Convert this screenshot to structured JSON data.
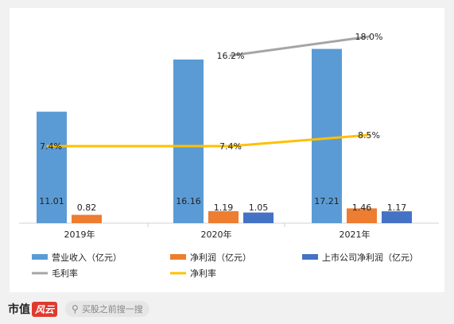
{
  "chart_data": {
    "type": "bar",
    "title": "",
    "categories": [
      "2019年",
      "2020年",
      "2021年"
    ],
    "series": [
      {
        "name": "营业收入（亿元）",
        "kind": "bar",
        "color": "#5b9bd5",
        "values": [
          11.01,
          16.16,
          17.21
        ],
        "labels": [
          "11.01",
          "16.16",
          "17.21"
        ]
      },
      {
        "name": "净利润（亿元）",
        "kind": "bar",
        "color": "#ed7d31",
        "values": [
          0.82,
          1.19,
          1.46
        ],
        "labels": [
          "0.82",
          "1.19",
          "1.46"
        ]
      },
      {
        "name": "上市公司净利润（亿元）",
        "kind": "bar",
        "color": "#4472c4",
        "values": [
          null,
          1.05,
          1.17
        ],
        "labels": [
          "",
          "1.05",
          "1.17"
        ]
      },
      {
        "name": "毛利率",
        "kind": "line",
        "color": "#a5a5a5",
        "values": [
          null,
          16.2,
          18.0
        ],
        "labels": [
          "",
          "16.2%",
          "18.0%"
        ]
      },
      {
        "name": "净利率",
        "kind": "line",
        "color": "#ffc000",
        "values": [
          7.4,
          7.4,
          8.5
        ],
        "labels": [
          "7.4%",
          "7.4%",
          "8.5%"
        ]
      }
    ],
    "legend_position": "bottom"
  },
  "footer": {
    "brand_text": "市值",
    "brand_mark": "风云",
    "search_icon": "search-icon",
    "search_placeholder": "买股之前搜一搜"
  }
}
